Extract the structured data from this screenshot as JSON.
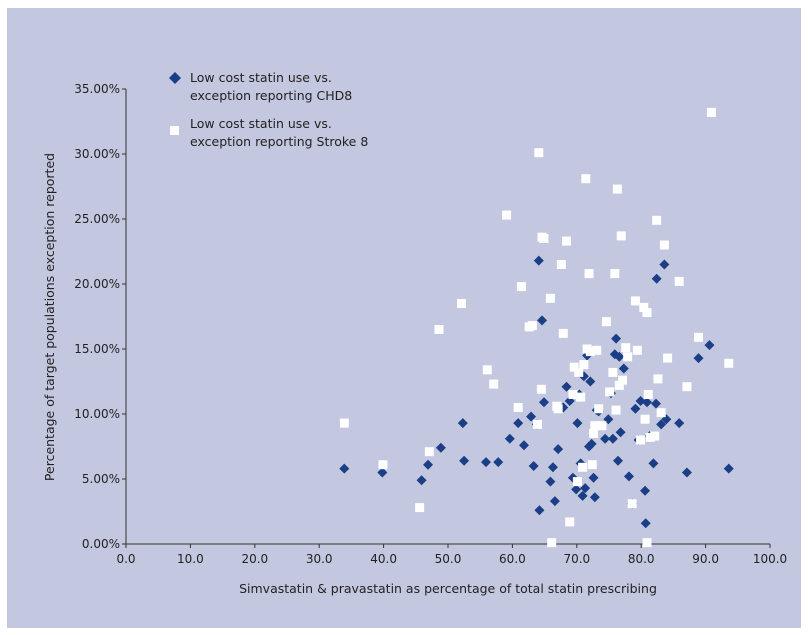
{
  "colors": {
    "background": "#c3c7df",
    "series1": "#1b3f86",
    "series2": "#ffffff",
    "axis": "#333333"
  },
  "chart_data": {
    "type": "scatter",
    "title": "",
    "xlabel": "Simvastatin & pravastatin as percentage of total statin prescribing",
    "ylabel": "Percentage of target populations exception reported",
    "xlim": [
      0,
      100
    ],
    "ylim": [
      0,
      35
    ],
    "xticks": [
      "0.0",
      "10.0",
      "20.0",
      "30.0",
      "40.0",
      "50.0",
      "60.0",
      "70.0",
      "80.0",
      "90.0",
      "100.0"
    ],
    "yticks": [
      "0.00%",
      "5.00%",
      "10.00%",
      "15.00%",
      "20.00%",
      "25.00%",
      "30.00%",
      "35.00%"
    ],
    "grid": false,
    "legend_position": "top-left",
    "legend": [
      {
        "line1": "Low cost statin use vs.",
        "line2": "exception reporting CHD8",
        "marker": "diamond"
      },
      {
        "line1": "Low cost statin use vs.",
        "line2": "exception reporting Stroke 8",
        "marker": "square"
      }
    ],
    "series": [
      {
        "name": "Low cost statin use vs. exception reporting CHD8",
        "marker": "diamond",
        "color": "#1b3f86",
        "points": [
          [
            33.9,
            5.8
          ],
          [
            39.8,
            5.5
          ],
          [
            45.9,
            4.9
          ],
          [
            46.9,
            6.1
          ],
          [
            48.9,
            7.4
          ],
          [
            52.3,
            9.3
          ],
          [
            52.5,
            6.4
          ],
          [
            55.9,
            6.3
          ],
          [
            57.8,
            6.3
          ],
          [
            59.6,
            8.1
          ],
          [
            60.9,
            9.3
          ],
          [
            61.8,
            7.6
          ],
          [
            62.9,
            9.8
          ],
          [
            63.3,
            6.0
          ],
          [
            63.8,
            9.2
          ],
          [
            64.1,
            21.8
          ],
          [
            64.6,
            17.2
          ],
          [
            64.2,
            2.6
          ],
          [
            64.9,
            10.9
          ],
          [
            65.9,
            4.8
          ],
          [
            66.3,
            5.9
          ],
          [
            66.6,
            3.3
          ],
          [
            67.1,
            7.3
          ],
          [
            67.9,
            10.5
          ],
          [
            68.4,
            12.1
          ],
          [
            68.9,
            11.0
          ],
          [
            69.4,
            5.1
          ],
          [
            69.9,
            4.2
          ],
          [
            70.1,
            9.3
          ],
          [
            70.4,
            11.5
          ],
          [
            70.6,
            6.2
          ],
          [
            70.9,
            3.7
          ],
          [
            71.1,
            12.9
          ],
          [
            71.3,
            4.3
          ],
          [
            71.6,
            14.5
          ],
          [
            71.9,
            7.5
          ],
          [
            72.1,
            12.5
          ],
          [
            72.3,
            7.7
          ],
          [
            72.6,
            5.1
          ],
          [
            72.8,
            3.6
          ],
          [
            73.1,
            10.3
          ],
          [
            73.4,
            10.2
          ],
          [
            74.4,
            8.1
          ],
          [
            74.9,
            9.6
          ],
          [
            75.3,
            11.6
          ],
          [
            75.6,
            8.1
          ],
          [
            75.9,
            14.6
          ],
          [
            76.1,
            15.8
          ],
          [
            76.4,
            6.4
          ],
          [
            76.6,
            14.4
          ],
          [
            76.8,
            8.6
          ],
          [
            77.3,
            13.5
          ],
          [
            78.1,
            5.2
          ],
          [
            78.6,
            3.1
          ],
          [
            79.1,
            10.4
          ],
          [
            79.6,
            8.0
          ],
          [
            79.9,
            11.0
          ],
          [
            80.6,
            4.1
          ],
          [
            80.7,
            1.6
          ],
          [
            80.9,
            10.9
          ],
          [
            81.3,
            8.3
          ],
          [
            81.9,
            6.2
          ],
          [
            82.3,
            10.8
          ],
          [
            82.4,
            20.4
          ],
          [
            83.1,
            9.2
          ],
          [
            83.6,
            21.5
          ],
          [
            83.9,
            9.6
          ],
          [
            85.9,
            9.3
          ],
          [
            87.1,
            5.5
          ],
          [
            88.9,
            14.3
          ],
          [
            90.6,
            15.3
          ],
          [
            93.6,
            5.8
          ]
        ]
      },
      {
        "name": "Low cost statin use vs. exception reporting Stroke 8",
        "marker": "square",
        "color": "#ffffff",
        "points": [
          [
            33.9,
            9.3
          ],
          [
            39.9,
            6.1
          ],
          [
            45.6,
            2.8
          ],
          [
            47.1,
            7.1
          ],
          [
            48.6,
            16.5
          ],
          [
            52.1,
            18.5
          ],
          [
            56.1,
            13.4
          ],
          [
            57.1,
            12.3
          ],
          [
            59.1,
            25.3
          ],
          [
            60.9,
            10.5
          ],
          [
            61.4,
            19.8
          ],
          [
            62.6,
            16.7
          ],
          [
            63.1,
            16.8
          ],
          [
            63.9,
            9.2
          ],
          [
            64.1,
            30.1
          ],
          [
            64.5,
            11.9
          ],
          [
            64.6,
            23.6
          ],
          [
            64.9,
            23.5
          ],
          [
            65.9,
            18.9
          ],
          [
            66.1,
            0.1
          ],
          [
            66.9,
            10.6
          ],
          [
            67.1,
            10.4
          ],
          [
            67.6,
            21.5
          ],
          [
            67.9,
            16.2
          ],
          [
            68.4,
            23.3
          ],
          [
            68.9,
            1.7
          ],
          [
            69.4,
            11.5
          ],
          [
            69.6,
            13.6
          ],
          [
            70.1,
            4.8
          ],
          [
            70.3,
            13.2
          ],
          [
            70.6,
            11.3
          ],
          [
            70.9,
            5.9
          ],
          [
            71.1,
            13.8
          ],
          [
            71.4,
            28.1
          ],
          [
            71.6,
            15.0
          ],
          [
            71.9,
            20.8
          ],
          [
            72.1,
            14.8
          ],
          [
            72.4,
            6.1
          ],
          [
            72.6,
            8.5
          ],
          [
            72.8,
            9.1
          ],
          [
            73.1,
            14.9
          ],
          [
            73.4,
            10.4
          ],
          [
            73.9,
            9.1
          ],
          [
            74.6,
            17.1
          ],
          [
            75.1,
            11.7
          ],
          [
            75.6,
            13.2
          ],
          [
            75.9,
            20.8
          ],
          [
            76.1,
            10.3
          ],
          [
            76.3,
            27.3
          ],
          [
            76.6,
            12.2
          ],
          [
            76.9,
            23.7
          ],
          [
            77.1,
            12.6
          ],
          [
            77.6,
            15.1
          ],
          [
            77.9,
            14.4
          ],
          [
            78.6,
            3.1
          ],
          [
            79.1,
            18.7
          ],
          [
            79.4,
            14.9
          ],
          [
            79.9,
            8.0
          ],
          [
            80.4,
            18.2
          ],
          [
            80.6,
            9.6
          ],
          [
            80.9,
            17.8
          ],
          [
            81.1,
            11.5
          ],
          [
            81.4,
            8.2
          ],
          [
            80.9,
            0.1
          ],
          [
            82.4,
            24.9
          ],
          [
            82.6,
            12.7
          ],
          [
            82.1,
            8.3
          ],
          [
            83.1,
            10.1
          ],
          [
            83.6,
            23.0
          ],
          [
            84.1,
            14.3
          ],
          [
            85.9,
            20.2
          ],
          [
            87.1,
            12.1
          ],
          [
            88.9,
            15.9
          ],
          [
            90.9,
            33.2
          ],
          [
            93.6,
            13.9
          ]
        ]
      }
    ]
  }
}
